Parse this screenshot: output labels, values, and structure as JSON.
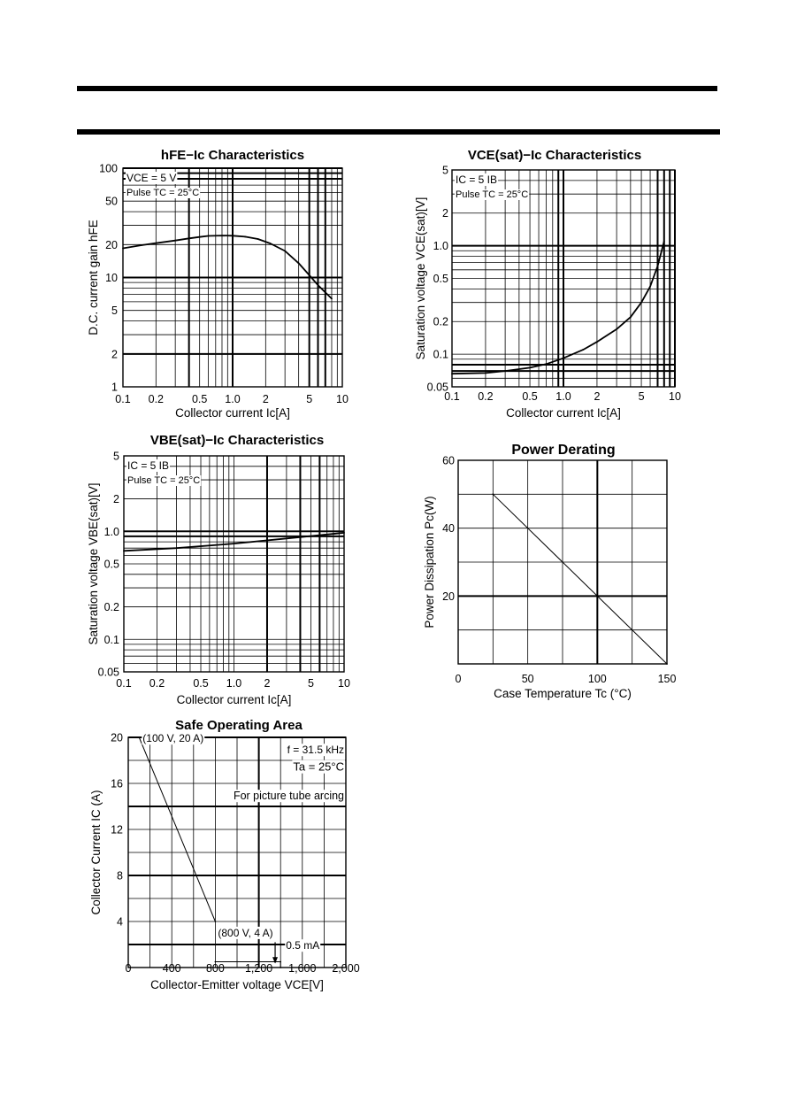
{
  "chart_data": [
    {
      "id": "hfe",
      "type": "line",
      "title": "hFE−Ic Characteristics",
      "xlabel": "Collector current   Ic[A]",
      "ylabel": "D.C. current gain   hFE",
      "xscale": "log",
      "yscale": "log",
      "xlim": [
        0.1,
        10
      ],
      "ylim": [
        1,
        100
      ],
      "xticks": [
        0.1,
        0.2,
        0.5,
        1.0,
        2,
        5,
        10
      ],
      "xtick_labels": [
        "0.1",
        "0.2",
        "0.5",
        "1.0",
        "2",
        "5",
        "10"
      ],
      "yticks": [
        1,
        2,
        5,
        10,
        20,
        50,
        100
      ],
      "ytick_labels": [
        "1",
        "2",
        "5",
        "10",
        "20",
        "50",
        "100"
      ],
      "annotations": [
        "VCE = 5 V",
        "Pulse TC = 25°C"
      ],
      "grid": true,
      "series": [
        {
          "x": [
            0.1,
            0.15,
            0.2,
            0.3,
            0.4,
            0.5,
            0.6,
            0.8,
            1.0,
            1.3,
            1.7,
            2.2,
            3,
            4,
            5,
            6,
            8
          ],
          "y": [
            18.5,
            19.8,
            20.6,
            21.8,
            22.8,
            23.5,
            24.0,
            24.2,
            24.1,
            23.6,
            22.5,
            20.5,
            17.5,
            13.5,
            10.5,
            8.5,
            6.4
          ]
        }
      ]
    },
    {
      "id": "vcesat",
      "type": "line",
      "title": "VCE(sat)−Ic Characteristics",
      "xlabel": "Collector current   Ic[A]",
      "ylabel": "Saturation voltage  VCE(sat)[V]",
      "xscale": "log",
      "yscale": "log",
      "xlim": [
        0.1,
        10
      ],
      "ylim": [
        0.05,
        5
      ],
      "xticks": [
        0.1,
        0.2,
        0.5,
        1.0,
        2,
        5,
        10
      ],
      "xtick_labels": [
        "0.1",
        "0.2",
        "0.5",
        "1.0",
        "2",
        "5",
        "10"
      ],
      "yticks": [
        0.05,
        0.1,
        0.2,
        0.5,
        1.0,
        2,
        5
      ],
      "ytick_labels": [
        "0.05",
        "0.1",
        "0.2",
        "0.5",
        "1.0",
        "2",
        "5"
      ],
      "annotations": [
        "IC = 5 IB",
        "Pulse TC = 25°C"
      ],
      "grid": true,
      "series": [
        {
          "x": [
            0.1,
            0.2,
            0.3,
            0.5,
            0.7,
            1.0,
            1.5,
            2,
            3,
            4,
            5,
            6,
            7,
            8
          ],
          "y": [
            0.066,
            0.067,
            0.07,
            0.075,
            0.081,
            0.092,
            0.11,
            0.13,
            0.17,
            0.22,
            0.3,
            0.42,
            0.65,
            1.1
          ]
        }
      ]
    },
    {
      "id": "vbesat",
      "type": "line",
      "title": "VBE(sat)−Ic Characteristics",
      "xlabel": "Collector current   Ic[A]",
      "ylabel": "Saturation voltage  VBE(sat)[V]",
      "xscale": "log",
      "yscale": "log",
      "xlim": [
        0.1,
        10
      ],
      "ylim": [
        0.05,
        5
      ],
      "xticks": [
        0.1,
        0.2,
        0.5,
        1.0,
        2,
        5,
        10
      ],
      "xtick_labels": [
        "0.1",
        "0.2",
        "0.5",
        "1.0",
        "2",
        "5",
        "10"
      ],
      "yticks": [
        0.05,
        0.1,
        0.2,
        0.5,
        1.0,
        2,
        5
      ],
      "ytick_labels": [
        "0.05",
        "0.1",
        "0.2",
        "0.5",
        "1.0",
        "2",
        "5"
      ],
      "annotations": [
        "IC = 5 IB",
        "Pulse TC = 25°C"
      ],
      "grid": true,
      "series": [
        {
          "x": [
            0.1,
            0.3,
            1.0,
            3,
            10
          ],
          "y": [
            0.66,
            0.7,
            0.77,
            0.86,
            0.97
          ]
        }
      ]
    },
    {
      "id": "derating",
      "type": "line",
      "title": "Power Derating",
      "xlabel": "Case Temperature  Tc  (°C)",
      "ylabel": "Power Dissipation Pc(W)",
      "xscale": "linear",
      "yscale": "linear",
      "xlim": [
        0,
        150
      ],
      "ylim": [
        0,
        60
      ],
      "xticks": [
        0,
        50,
        100,
        150
      ],
      "xtick_labels": [
        "0",
        "50",
        "100",
        "150"
      ],
      "yticks": [
        20,
        40,
        60
      ],
      "ytick_labels": [
        "20",
        "40",
        "60"
      ],
      "grid": true,
      "series": [
        {
          "x": [
            25,
            150
          ],
          "y": [
            50,
            0
          ]
        }
      ]
    },
    {
      "id": "soa",
      "type": "line",
      "title": "Safe Operating Area",
      "xlabel": "Collector-Emitter voltage VCE[V]",
      "ylabel": "Collector Current  IC  (A)",
      "xscale": "linear",
      "yscale": "linear",
      "xlim": [
        0,
        2000
      ],
      "ylim": [
        0,
        20
      ],
      "xticks": [
        0,
        400,
        800,
        1200,
        1600,
        2000
      ],
      "xtick_labels": [
        "0",
        "400",
        "800",
        "1,200",
        "1,600",
        "2,000"
      ],
      "yticks": [
        4,
        8,
        12,
        16,
        20
      ],
      "ytick_labels": [
        "4",
        "8",
        "12",
        "16",
        "20"
      ],
      "annotations": [
        "(100 V, 20 A)",
        "(800 V, 4 A)",
        "f = 31.5 kHz",
        "Ta = 25°C",
        "For picture tube arcing",
        "0.5 mA"
      ],
      "grid": true,
      "series": [
        {
          "x": [
            100,
            800
          ],
          "y": [
            20,
            4
          ]
        },
        {
          "x": [
            800,
            1400,
            1400
          ],
          "y": [
            0.5,
            0.5,
            0
          ]
        }
      ]
    }
  ]
}
